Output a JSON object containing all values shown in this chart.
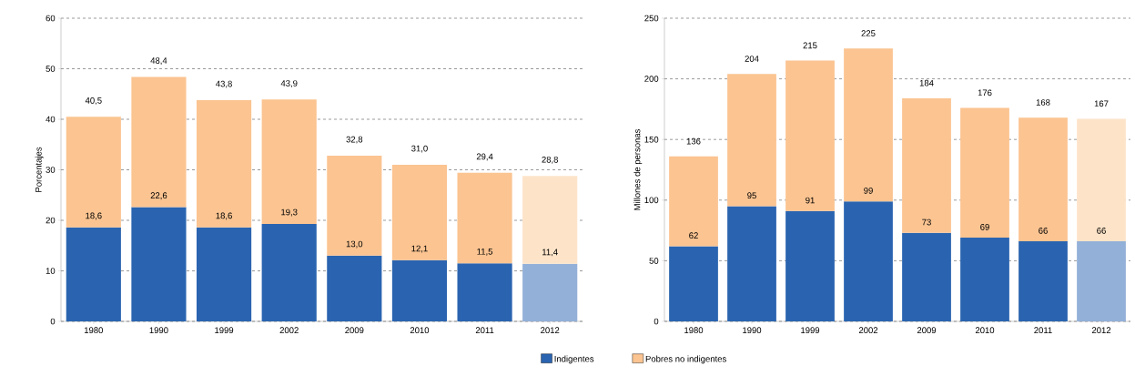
{
  "chart_data": [
    {
      "type": "bar",
      "stacked": true,
      "ylabel": "Porcentajes",
      "categories": [
        "1980",
        "1990",
        "1999",
        "2002",
        "2009",
        "2010",
        "2011",
        "2012"
      ],
      "series": [
        {
          "name": "Indigentes",
          "color": "#2a64b0",
          "colors": [
            "#2a64b0",
            "#2a64b0",
            "#2a64b0",
            "#2a64b0",
            "#2a64b0",
            "#2a64b0",
            "#2a64b0",
            "#92b0d8"
          ],
          "values": [
            18.6,
            22.6,
            18.6,
            19.3,
            13.0,
            12.1,
            11.5,
            11.4
          ],
          "value_labels": [
            "18,6",
            "22,6",
            "18,6",
            "19,3",
            "13,0",
            "12,1",
            "11,5",
            "11,4"
          ]
        },
        {
          "name": "Pobres no indigentes",
          "color": "#fbc491",
          "colors": [
            "#fbc491",
            "#fbc491",
            "#fbc491",
            "#fbc491",
            "#fbc491",
            "#fbc491",
            "#fbc491",
            "#fde4c9"
          ],
          "values": [
            21.9,
            25.8,
            25.2,
            24.6,
            19.8,
            18.9,
            17.9,
            17.4
          ]
        }
      ],
      "totals": [
        "40,5",
        "48,4",
        "43,8",
        "43,9",
        "32,8",
        "31,0",
        "29,4",
        "28,8"
      ],
      "ylim": [
        0,
        60
      ],
      "yticks": [
        0,
        10,
        20,
        30,
        40,
        50,
        60
      ],
      "grid": "y",
      "legend": "bottom"
    },
    {
      "type": "bar",
      "stacked": true,
      "ylabel": "Millones de personas",
      "categories": [
        "1980",
        "1990",
        "1999",
        "2002",
        "2009",
        "2010",
        "2011",
        "2012"
      ],
      "series": [
        {
          "color": "#2a64b0",
          "colors": [
            "#2a64b0",
            "#2a64b0",
            "#2a64b0",
            "#2a64b0",
            "#2a64b0",
            "#2a64b0",
            "#2a64b0",
            "#92b0d8"
          ],
          "values": [
            62,
            95,
            91,
            99,
            73,
            69,
            66,
            66
          ],
          "value_labels": [
            "62",
            "95",
            "91",
            "99",
            "73",
            "69",
            "66",
            "66"
          ]
        },
        {
          "color": "#fbc491",
          "colors": [
            "#fbc491",
            "#fbc491",
            "#fbc491",
            "#fbc491",
            "#fbc491",
            "#fbc491",
            "#fbc491",
            "#fde4c9"
          ],
          "values": [
            74,
            109,
            124,
            126,
            111,
            107,
            102,
            101
          ]
        }
      ],
      "totals": [
        "136",
        "204",
        "215",
        "225",
        "184",
        "176",
        "168",
        "167"
      ],
      "ylim": [
        0,
        250
      ],
      "yticks": [
        0,
        50,
        100,
        150,
        200,
        250
      ],
      "grid": "y"
    }
  ]
}
